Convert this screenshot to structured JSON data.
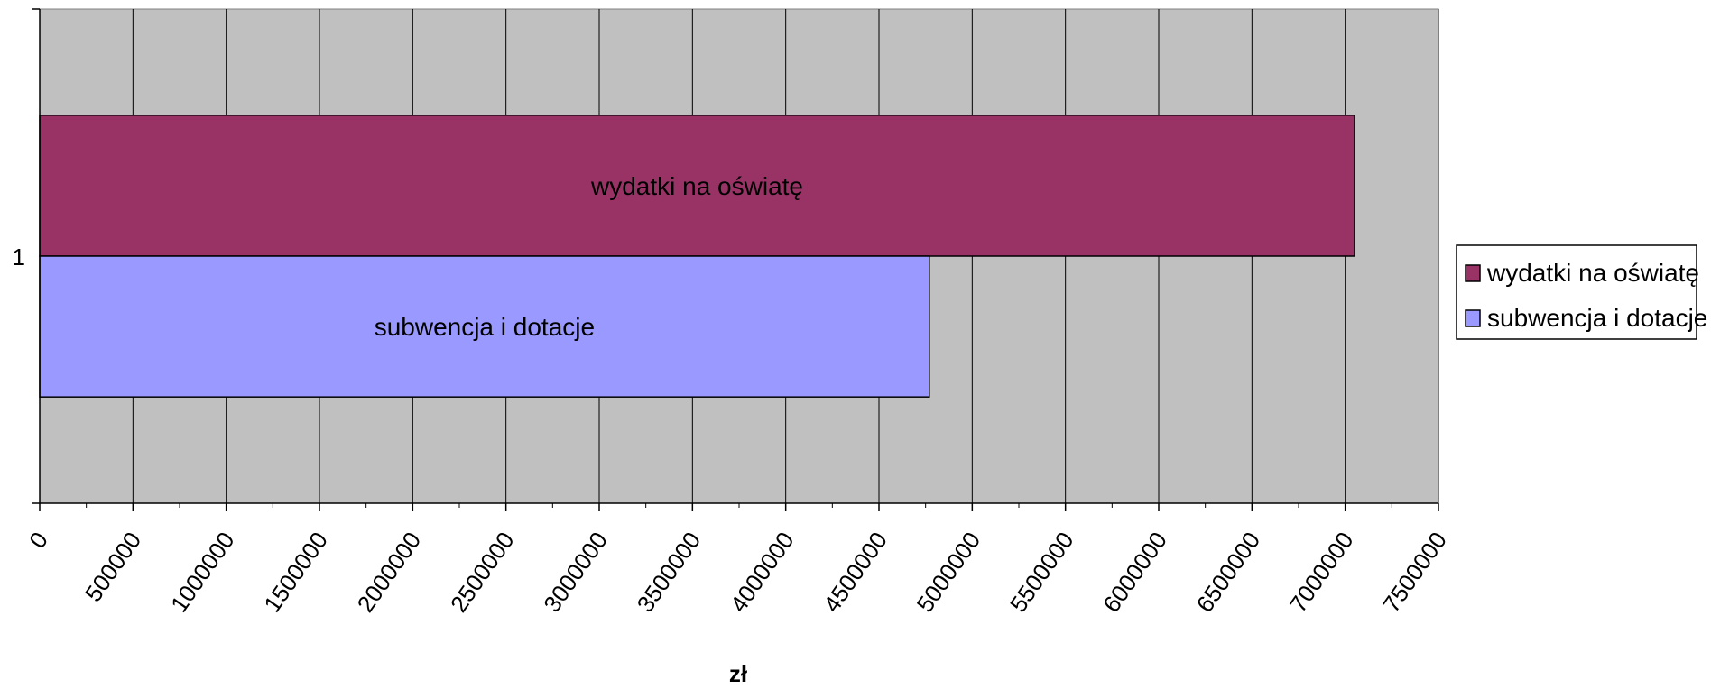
{
  "chart_data": {
    "type": "bar",
    "orientation": "horizontal",
    "categories": [
      "1"
    ],
    "series": [
      {
        "name": "wydatki na oświatę",
        "values": [
          7050000
        ],
        "color": "#993366"
      },
      {
        "name": "subwencja i dotacje",
        "values": [
          4770000
        ],
        "color": "#9999ff"
      }
    ],
    "xlabel": "zł",
    "ylabel": "",
    "xlim": [
      0,
      7500000
    ],
    "xticks": [
      "0",
      "500000",
      "1000000",
      "1500000",
      "2000000",
      "2500000",
      "3000000",
      "3500000",
      "4000000",
      "4500000",
      "5000000",
      "5500000",
      "6000000",
      "6500000",
      "7000000",
      "7500000"
    ],
    "plot_background": "#c0c0c0",
    "grid": true,
    "legend_position": "right"
  }
}
